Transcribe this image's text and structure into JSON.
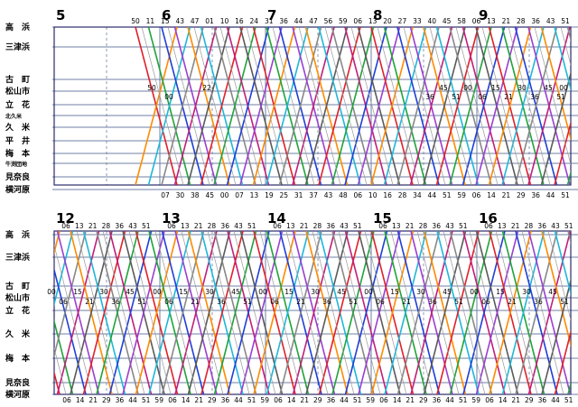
{
  "panels": [
    {
      "id": "top",
      "hours": [
        "5",
        "6",
        "7",
        "8",
        "9"
      ],
      "stations": [
        {
          "name": "高　浜",
          "size": "normal"
        },
        {
          "name": "三津浜",
          "size": "normal"
        },
        {
          "name": "古　町",
          "size": "normal"
        },
        {
          "name": "松山市",
          "size": "normal"
        },
        {
          "name": "立　花",
          "size": "normal"
        },
        {
          "name": "北久米",
          "size": "small"
        },
        {
          "name": "久　米",
          "size": "normal"
        },
        {
          "name": "平　井",
          "size": "normal"
        },
        {
          "name": "梅　本",
          "size": "normal"
        },
        {
          "name": "牛渕団地",
          "size": "small"
        },
        {
          "name": "見奈良",
          "size": "normal"
        },
        {
          "name": "横河原",
          "size": "normal"
        }
      ],
      "top_ticks": [
        "50",
        "11",
        "15",
        "43",
        "47",
        "01",
        "10",
        "16",
        "24",
        "31",
        "36",
        "44",
        "47",
        "56",
        "59",
        "06",
        "13",
        "20",
        "27",
        "33",
        "40",
        "45",
        "58",
        "06",
        "13",
        "21",
        "28",
        "36",
        "43",
        "51"
      ],
      "bottom_ticks": [
        "07",
        "30",
        "38",
        "45",
        "00",
        "07",
        "13",
        "19",
        "25",
        "31",
        "37",
        "43",
        "48",
        "06",
        "10",
        "16",
        "28",
        "34",
        "44",
        "51",
        "59",
        "06",
        "14",
        "21",
        "29",
        "36",
        "44",
        "51"
      ],
      "mid_labels_upper": [
        "50",
        "22",
        "45",
        "00",
        "15",
        "30",
        "45",
        "00"
      ],
      "mid_labels_lower": [
        "00",
        "36",
        "51",
        "06",
        "21",
        "36",
        "51"
      ]
    },
    {
      "id": "bottom",
      "hours": [
        "12",
        "13",
        "14",
        "15",
        "16"
      ],
      "stations": [
        {
          "name": "高　浜",
          "size": "normal"
        },
        {
          "name": "三津浜",
          "size": "normal"
        },
        {
          "name": "古　町",
          "size": "normal"
        },
        {
          "name": "松山市",
          "size": "normal"
        },
        {
          "name": "立　花",
          "size": "normal"
        },
        {
          "name": "久　米",
          "size": "normal"
        },
        {
          "name": "梅　本",
          "size": "normal"
        },
        {
          "name": "見奈良",
          "size": "normal"
        },
        {
          "name": "横河原",
          "size": "normal"
        }
      ],
      "top_ticks": [
        "06",
        "13",
        "21",
        "28",
        "36",
        "43",
        "51"
      ],
      "bottom_ticks": [
        "06",
        "14",
        "21",
        "29",
        "36",
        "44",
        "51",
        "59"
      ],
      "mid_labels_upper": [
        "00",
        "15",
        "30",
        "45"
      ],
      "mid_labels_lower": [
        "06",
        "21",
        "36",
        "51"
      ]
    }
  ],
  "colors": {
    "frame": "#2b2b6b",
    "grid": "#6f7fa6",
    "lines": [
      "#e0202a",
      "#1fa33a",
      "#1f3fd6",
      "#9b3fd0",
      "#ff8a00",
      "#1fb7d9",
      "#888888",
      "#c01f7a",
      "#5a5a5a"
    ]
  }
}
